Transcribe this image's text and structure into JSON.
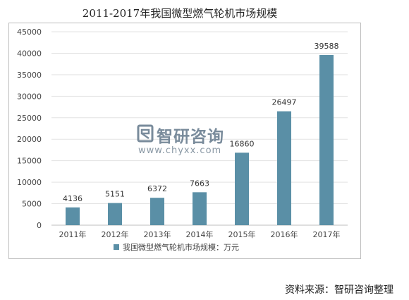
{
  "chart_data": {
    "type": "bar",
    "title": "2011-2017年我国微型燃气轮机市场规模",
    "categories": [
      "2011年",
      "2012年",
      "2013年",
      "2014年",
      "2015年",
      "2016年",
      "2017年"
    ],
    "series": [
      {
        "name": "我国微型燃气轮机市场规模：万元",
        "values": [
          4136,
          5151,
          6372,
          7663,
          16860,
          26497,
          39588
        ]
      }
    ],
    "ylim": [
      0,
      45000
    ],
    "yticks": [
      0,
      5000,
      10000,
      15000,
      20000,
      25000,
      30000,
      35000,
      40000,
      45000
    ],
    "data_labels": true,
    "grid": true,
    "legend_position": "bottom",
    "bar_color": "#5a8fa6"
  },
  "watermark": {
    "name": "智研咨询",
    "url": "www.chyxx.com"
  },
  "source": "资料来源：智研咨询整理"
}
